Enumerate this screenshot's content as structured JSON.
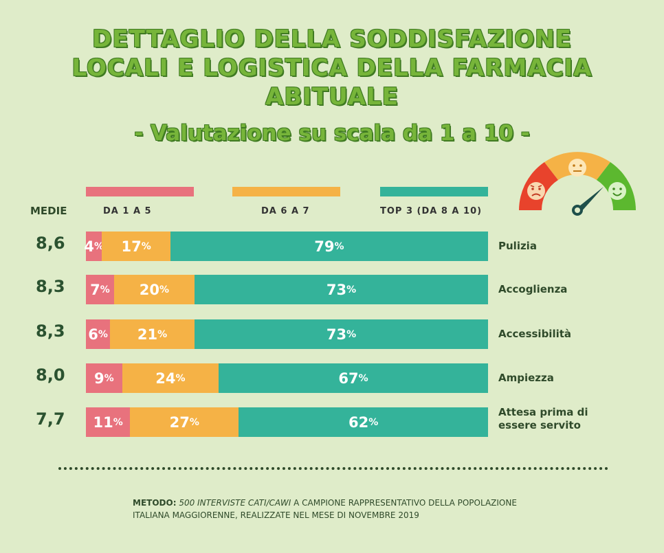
{
  "title_lines": [
    "DETTAGLIO DELLA SODDISFAZIONE",
    "LOCALI E LOGISTICA DELLA FARMACIA",
    "ABITUALE"
  ],
  "subtitle": "- Valutazione su scala da 1 a 10 -",
  "medie_label": "MEDIE",
  "legend": [
    {
      "label": "DA 1 A 5",
      "color": "#e8727d"
    },
    {
      "label": "DA 6 A 7",
      "color": "#f5b246"
    },
    {
      "label": "TOP 3 (DA 8 A 10)",
      "color": "#34b39a"
    }
  ],
  "footer": {
    "metodo_label": "METODO",
    "metodo_italic": "500 INTERVISTE CATI/CAWI",
    "metodo_rest": "A CAMPIONE RAPPRESENTATIVO DELLA POPOLAZIONE",
    "line2": "ITALIANA MAGGIORENNE, REALIZZATE NEL MESE DI NOVEMBRE 2019"
  },
  "gauge_icons": [
    "sad-face-icon",
    "neutral-face-icon",
    "happy-face-icon",
    "needle-icon"
  ],
  "chart_data": {
    "type": "bar",
    "stacked": true,
    "orientation": "horizontal",
    "title": "DETTAGLIO DELLA SODDISFAZIONE LOCALI E LOGISTICA DELLA FARMACIA ABITUALE",
    "subtitle": "- Valutazione su scala da 1 a 10 -",
    "categories": [
      "Pulizia",
      "Accoglienza",
      "Accessibilità",
      "Ampiezza",
      "Attesa prima di essere servito"
    ],
    "means": [
      "8,6",
      "8,3",
      "8,3",
      "8,0",
      "7,7"
    ],
    "series": [
      {
        "name": "DA 1 A 5",
        "values": [
          4,
          7,
          6,
          9,
          11
        ],
        "color": "#e8727d"
      },
      {
        "name": "DA 6 A 7",
        "values": [
          17,
          20,
          21,
          24,
          27
        ],
        "color": "#f5b246"
      },
      {
        "name": "TOP 3 (DA 8 A 10)",
        "values": [
          79,
          73,
          73,
          67,
          62
        ],
        "color": "#34b39a"
      }
    ],
    "unit": "%",
    "xlim": [
      0,
      100
    ],
    "legend_position": "top"
  }
}
